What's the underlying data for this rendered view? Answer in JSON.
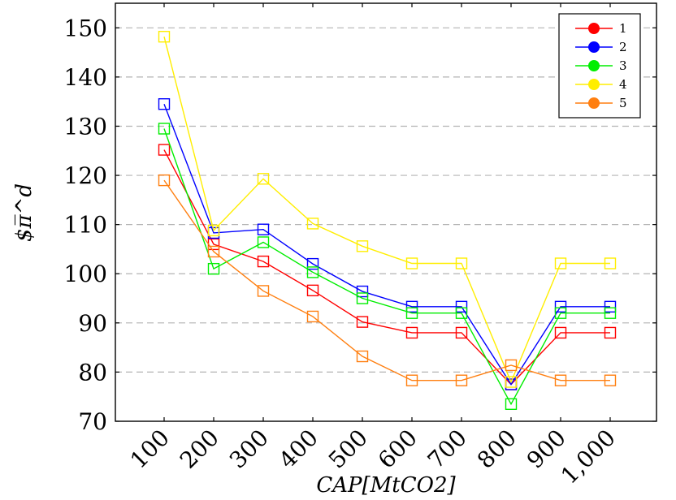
{
  "chart_data": {
    "type": "line",
    "title": "",
    "xlabel": "CAP[MtCO2]",
    "ylabel": "$π̅^d",
    "categories": [
      "100",
      "200",
      "300",
      "400",
      "500",
      "600",
      "700",
      "800",
      "900",
      "1,000"
    ],
    "ylim": [
      70,
      155
    ],
    "yticks": [
      70,
      80,
      90,
      100,
      110,
      120,
      130,
      140,
      150
    ],
    "grid": "horizontal dashed",
    "legend_position": "top-right",
    "marker": "square",
    "series": [
      {
        "name": "1",
        "color": "#ff0000",
        "values": [
          125.2,
          106.0,
          102.5,
          96.6,
          90.2,
          88.0,
          88.0,
          77.5,
          88.0,
          88.0
        ]
      },
      {
        "name": "2",
        "color": "#0000ff",
        "values": [
          134.5,
          108.3,
          109.0,
          102.0,
          96.4,
          93.3,
          93.3,
          77.5,
          93.3,
          93.3
        ]
      },
      {
        "name": "3",
        "color": "#00ee00",
        "values": [
          129.5,
          101.0,
          106.4,
          100.3,
          95.0,
          92.0,
          92.0,
          73.5,
          92.0,
          92.0
        ]
      },
      {
        "name": "4",
        "color": "#ffee00",
        "values": [
          148.2,
          108.8,
          119.3,
          110.2,
          105.6,
          102.1,
          102.1,
          78.0,
          102.1,
          102.1
        ]
      },
      {
        "name": "5",
        "color": "#ff7f10",
        "values": [
          119.0,
          104.5,
          96.5,
          91.3,
          83.2,
          78.3,
          78.3,
          81.4,
          78.3,
          78.3
        ]
      }
    ]
  }
}
